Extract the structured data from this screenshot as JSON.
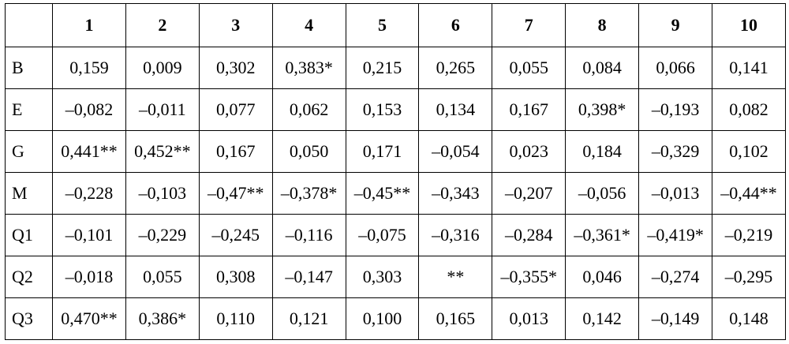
{
  "table": {
    "header": [
      "1",
      "2",
      "3",
      "4",
      "5",
      "6",
      "7",
      "8",
      "9",
      "10"
    ],
    "rows": [
      {
        "label": "B",
        "cells": [
          "0,159",
          "0,009",
          "0,302",
          "0,383*",
          "0,215",
          "0,265",
          "0,055",
          "0,084",
          "0,066",
          "0,141"
        ]
      },
      {
        "label": "E",
        "cells": [
          "–0,082",
          "–0,011",
          "0,077",
          "0,062",
          "0,153",
          "0,134",
          "0,167",
          "0,398*",
          "–0,193",
          "0,082"
        ]
      },
      {
        "label": "G",
        "cells": [
          "0,441**",
          "0,452**",
          "0,167",
          "0,050",
          "0,171",
          "–0,054",
          "0,023",
          "0,184",
          "–0,329",
          "0,102"
        ]
      },
      {
        "label": "M",
        "cells": [
          "–0,228",
          "–0,103",
          "–0,47**",
          "–0,378*",
          "–0,45**",
          "–0,343",
          "–0,207",
          "–0,056",
          "–0,013",
          "–0,44**"
        ]
      },
      {
        "label": "Q1",
        "cells": [
          "–0,101",
          "–0,229",
          "–0,245",
          "–0,116",
          "–0,075",
          "–0,316",
          "–0,284",
          "–0,361*",
          "–0,419*",
          "–0,219"
        ]
      },
      {
        "label": "Q2",
        "cells": [
          "–0,018",
          "0,055",
          "0,308",
          "–0,147",
          "0,303",
          "**",
          "–0,355*",
          "0,046",
          "–0,274",
          "–0,295"
        ]
      },
      {
        "label": "Q3",
        "cells": [
          "0,470**",
          "0,386*",
          "0,110",
          "0,121",
          "0,100",
          "0,165",
          "0,013",
          "0,142",
          "–0,149",
          "0,148"
        ]
      }
    ]
  }
}
